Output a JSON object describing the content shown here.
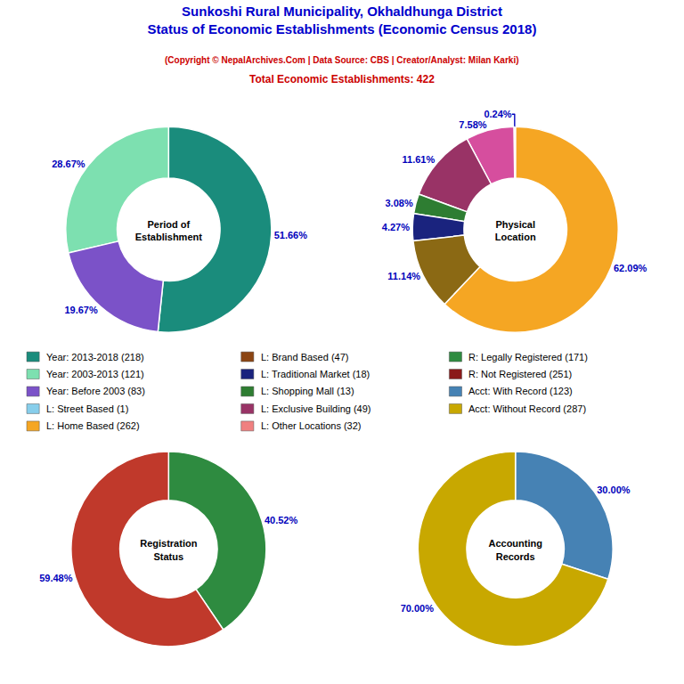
{
  "title": {
    "text": "Sunkoshi Rural Municipality, Okhaldhunga District\nStatus of Economic Establishments (Economic Census 2018)",
    "color": "#0000cc"
  },
  "subtitle": [
    {
      "text": "(Copyright © NepalArchives.Com | Data Source: CBS | Creator/Analyst: Milan Karki)",
      "color": "#cc0000"
    },
    {
      "text": "Total Economic Establishments: 422",
      "color": "#cc0000"
    }
  ],
  "chart_data": [
    {
      "type": "pie",
      "title": "Period of\nEstablishment",
      "values": [
        51.66,
        28.67,
        19.67
      ],
      "value_labels": [
        "51.66%",
        "28.67%",
        "19.67%"
      ],
      "colors": [
        "#1a8c7c",
        "#7de0b0",
        "#7b52c8"
      ],
      "data_labels": true
    },
    {
      "type": "pie",
      "title": "Physical\nLocation",
      "values": [
        62.09,
        0.24,
        7.58,
        11.61,
        3.08,
        4.27,
        11.14
      ],
      "value_labels": [
        "62.09%",
        "0.24%",
        "7.58%",
        "11.61%",
        "3.08%",
        "4.27%",
        "11.14%"
      ],
      "colors": [
        "#f5a623",
        "#87ceeb",
        "#d64e9e",
        "#993366",
        "#2e7d32",
        "#1a237e",
        "#8b6914"
      ],
      "data_labels": true
    },
    {
      "type": "pie",
      "title": "Registration\nStatus",
      "values": [
        40.52,
        59.48
      ],
      "value_labels": [
        "40.52%",
        "59.48%"
      ],
      "colors": [
        "#2e8b40",
        "#c0392b"
      ],
      "data_labels": true
    },
    {
      "type": "pie",
      "title": "Accounting\nRecords",
      "values": [
        30,
        70
      ],
      "value_labels": [
        "30.00%",
        "70.00%"
      ],
      "colors": [
        "#4682b4",
        "#c8a800"
      ],
      "data_labels": true
    }
  ],
  "legend_items": [
    {
      "label": "Year: 2013-2018 (218)",
      "color": "#1a8c7c"
    },
    {
      "label": "Year: 2003-2013 (121)",
      "color": "#7de0b0"
    },
    {
      "label": "Year: Before 2003 (83)",
      "color": "#7b52c8"
    },
    {
      "label": "L: Street Based (1)",
      "color": "#87ceeb"
    },
    {
      "label": "L: Home Based (262)",
      "color": "#f5a623"
    },
    {
      "label": "L: Brand Based (47)",
      "color": "#8b4513"
    },
    {
      "label": "L: Traditional Market (18)",
      "color": "#1a237e"
    },
    {
      "label": "L: Shopping Mall (13)",
      "color": "#2e7d32"
    },
    {
      "label": "L: Exclusive Building (49)",
      "color": "#993366"
    },
    {
      "label": "L: Other Locations (32)",
      "color": "#f08080"
    },
    {
      "label": "R: Legally Registered (171)",
      "color": "#2e8b40"
    },
    {
      "label": "R: Not Registered (251)",
      "color": "#8b1a1a"
    },
    {
      "label": "Acct: With Record (123)",
      "color": "#4682b4"
    },
    {
      "label": "Acct: Without Record (287)",
      "color": "#c8a800"
    }
  ]
}
